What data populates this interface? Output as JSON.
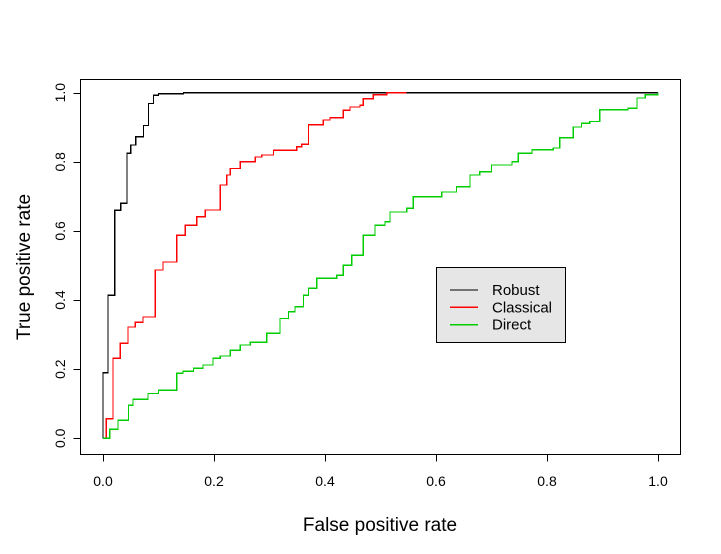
{
  "chart_data": {
    "type": "line",
    "subtype": "step-roc-curves",
    "title": "",
    "xlabel": "False positive rate",
    "ylabel": "True positive rate",
    "xlim": [
      0,
      1
    ],
    "ylim": [
      0,
      1
    ],
    "grid": false,
    "background_color": "#ffffff",
    "axis_color": "#000000",
    "x_ticks": {
      "values": [
        0.0,
        0.2,
        0.4,
        0.6,
        0.8,
        1.0
      ],
      "labels": [
        "0.0",
        "0.2",
        "0.4",
        "0.6",
        "0.8",
        "1.0"
      ]
    },
    "y_ticks": {
      "values": [
        0.0,
        0.2,
        0.4,
        0.6,
        0.8,
        1.0
      ],
      "labels": [
        "0.0",
        "0.2",
        "0.4",
        "0.6",
        "0.8",
        "1.0"
      ]
    },
    "legend": {
      "position": "inside-right-middle",
      "background": "#e6e6e6",
      "border_color": "#000000",
      "entries": [
        {
          "label": "Robust",
          "color": "#000000"
        },
        {
          "label": "Classical",
          "color": "#ff0000"
        },
        {
          "label": "Direct",
          "color": "#00cd00"
        }
      ]
    },
    "series": [
      {
        "name": "Robust",
        "color": "#000000",
        "points": [
          [
            0,
            0
          ],
          [
            0,
            0.19
          ],
          [
            0.009,
            0.414
          ],
          [
            0.021,
            0.66
          ],
          [
            0.032,
            0.68
          ],
          [
            0.043,
            0.825
          ],
          [
            0.05,
            0.849
          ],
          [
            0.059,
            0.873
          ],
          [
            0.073,
            0.905
          ],
          [
            0.082,
            0.969
          ],
          [
            0.091,
            0.993
          ],
          [
            0.1,
            0.997
          ],
          [
            0.145,
            1.0
          ],
          [
            1.0,
            1.0
          ]
        ]
      },
      {
        "name": "Classical",
        "color": "#ff0000",
        "points": [
          [
            0,
            0
          ],
          [
            0.006,
            0.057
          ],
          [
            0.018,
            0.232
          ],
          [
            0.031,
            0.275
          ],
          [
            0.045,
            0.322
          ],
          [
            0.058,
            0.336
          ],
          [
            0.072,
            0.351
          ],
          [
            0.094,
            0.487
          ],
          [
            0.108,
            0.51
          ],
          [
            0.133,
            0.588
          ],
          [
            0.148,
            0.617
          ],
          [
            0.169,
            0.641
          ],
          [
            0.184,
            0.661
          ],
          [
            0.211,
            0.733
          ],
          [
            0.223,
            0.762
          ],
          [
            0.229,
            0.781
          ],
          [
            0.247,
            0.8
          ],
          [
            0.274,
            0.814
          ],
          [
            0.286,
            0.82
          ],
          [
            0.307,
            0.834
          ],
          [
            0.349,
            0.844
          ],
          [
            0.358,
            0.851
          ],
          [
            0.37,
            0.907
          ],
          [
            0.397,
            0.921
          ],
          [
            0.409,
            0.928
          ],
          [
            0.433,
            0.949
          ],
          [
            0.445,
            0.959
          ],
          [
            0.463,
            0.964
          ],
          [
            0.469,
            0.983
          ],
          [
            0.487,
            0.994
          ],
          [
            0.511,
            1.0
          ],
          [
            0.547,
            1.0
          ]
        ]
      },
      {
        "name": "Direct",
        "color": "#00cd00",
        "points": [
          [
            0,
            0
          ],
          [
            0.012,
            0.026
          ],
          [
            0.027,
            0.052
          ],
          [
            0.046,
            0.096
          ],
          [
            0.054,
            0.113
          ],
          [
            0.081,
            0.13
          ],
          [
            0.1,
            0.139
          ],
          [
            0.133,
            0.188
          ],
          [
            0.144,
            0.194
          ],
          [
            0.163,
            0.203
          ],
          [
            0.18,
            0.212
          ],
          [
            0.198,
            0.232
          ],
          [
            0.211,
            0.238
          ],
          [
            0.229,
            0.255
          ],
          [
            0.247,
            0.27
          ],
          [
            0.265,
            0.278
          ],
          [
            0.295,
            0.304
          ],
          [
            0.319,
            0.347
          ],
          [
            0.334,
            0.366
          ],
          [
            0.346,
            0.381
          ],
          [
            0.361,
            0.414
          ],
          [
            0.37,
            0.434
          ],
          [
            0.385,
            0.463
          ],
          [
            0.421,
            0.472
          ],
          [
            0.433,
            0.501
          ],
          [
            0.448,
            0.53
          ],
          [
            0.469,
            0.588
          ],
          [
            0.49,
            0.617
          ],
          [
            0.508,
            0.627
          ],
          [
            0.517,
            0.655
          ],
          [
            0.547,
            0.666
          ],
          [
            0.559,
            0.699
          ],
          [
            0.61,
            0.713
          ],
          [
            0.637,
            0.728
          ],
          [
            0.661,
            0.762
          ],
          [
            0.679,
            0.771
          ],
          [
            0.7,
            0.791
          ],
          [
            0.737,
            0.8
          ],
          [
            0.748,
            0.825
          ],
          [
            0.773,
            0.835
          ],
          [
            0.811,
            0.84
          ],
          [
            0.823,
            0.87
          ],
          [
            0.847,
            0.901
          ],
          [
            0.862,
            0.912
          ],
          [
            0.877,
            0.917
          ],
          [
            0.895,
            0.951
          ],
          [
            0.946,
            0.955
          ],
          [
            0.962,
            0.985
          ],
          [
            0.977,
            0.994
          ],
          [
            1.0,
            1.0
          ]
        ]
      }
    ]
  }
}
